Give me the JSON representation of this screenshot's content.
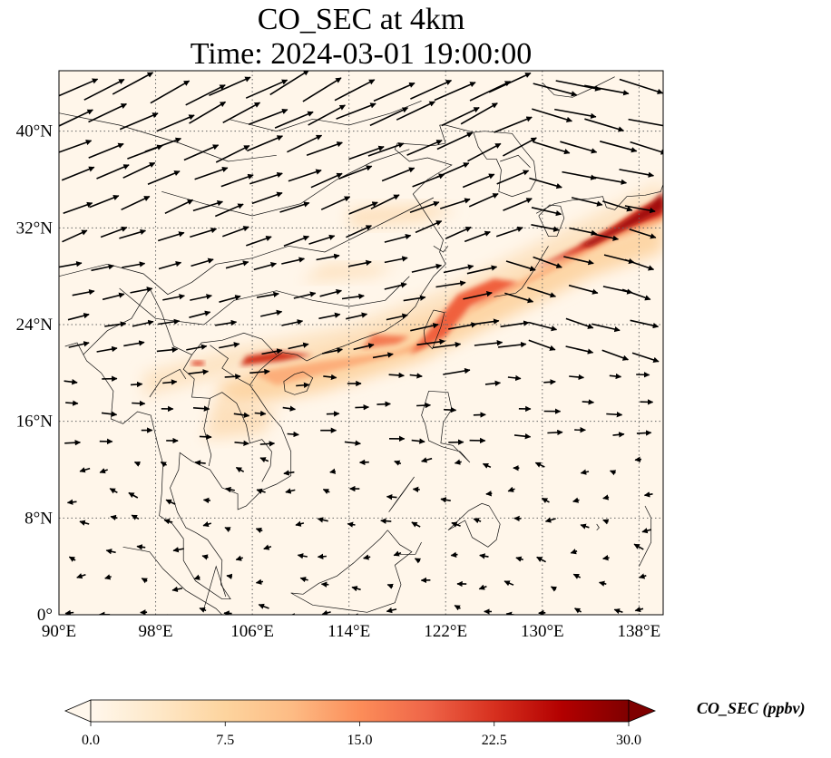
{
  "title": {
    "line1": "CO_SEC at 4km",
    "line2": "Time: 2024-03-01 19:00:00"
  },
  "map": {
    "projection": "PlateCarree",
    "lon_range": [
      90,
      140
    ],
    "lat_range": [
      0,
      45
    ],
    "gridlines": true,
    "gridline_style": "dotted",
    "lon_ticks": [
      {
        "value": 90,
        "label": "90°E"
      },
      {
        "value": 98,
        "label": "98°E"
      },
      {
        "value": 106,
        "label": "106°E"
      },
      {
        "value": 114,
        "label": "114°E"
      },
      {
        "value": 122,
        "label": "122°E"
      },
      {
        "value": 130,
        "label": "130°E"
      },
      {
        "value": 138,
        "label": "138°E"
      }
    ],
    "lat_ticks": [
      {
        "value": 0,
        "label": "0°"
      },
      {
        "value": 8,
        "label": "8°N"
      },
      {
        "value": 16,
        "label": "16°N"
      },
      {
        "value": 24,
        "label": "24°N"
      },
      {
        "value": 32,
        "label": "32°N"
      },
      {
        "value": 40,
        "label": "40°N"
      }
    ],
    "field_colormap": "OrRd",
    "vectors": "wind arrows (quiver)"
  },
  "colorbar": {
    "label": "CO_SEC (ppbv)",
    "min": 0,
    "max": 30,
    "extend": "both",
    "ticks": [
      {
        "value": 0,
        "label": "0.0"
      },
      {
        "value": 7.5,
        "label": "7.5"
      },
      {
        "value": 15,
        "label": "15.0"
      },
      {
        "value": 22.5,
        "label": "22.5"
      },
      {
        "value": 30,
        "label": "30.0"
      }
    ],
    "colors": [
      "#fff7ec",
      "#fee8c8",
      "#fdd49e",
      "#fdbb84",
      "#fc8d59",
      "#ef6548",
      "#d7301f",
      "#b30000",
      "#7f0000"
    ]
  }
}
